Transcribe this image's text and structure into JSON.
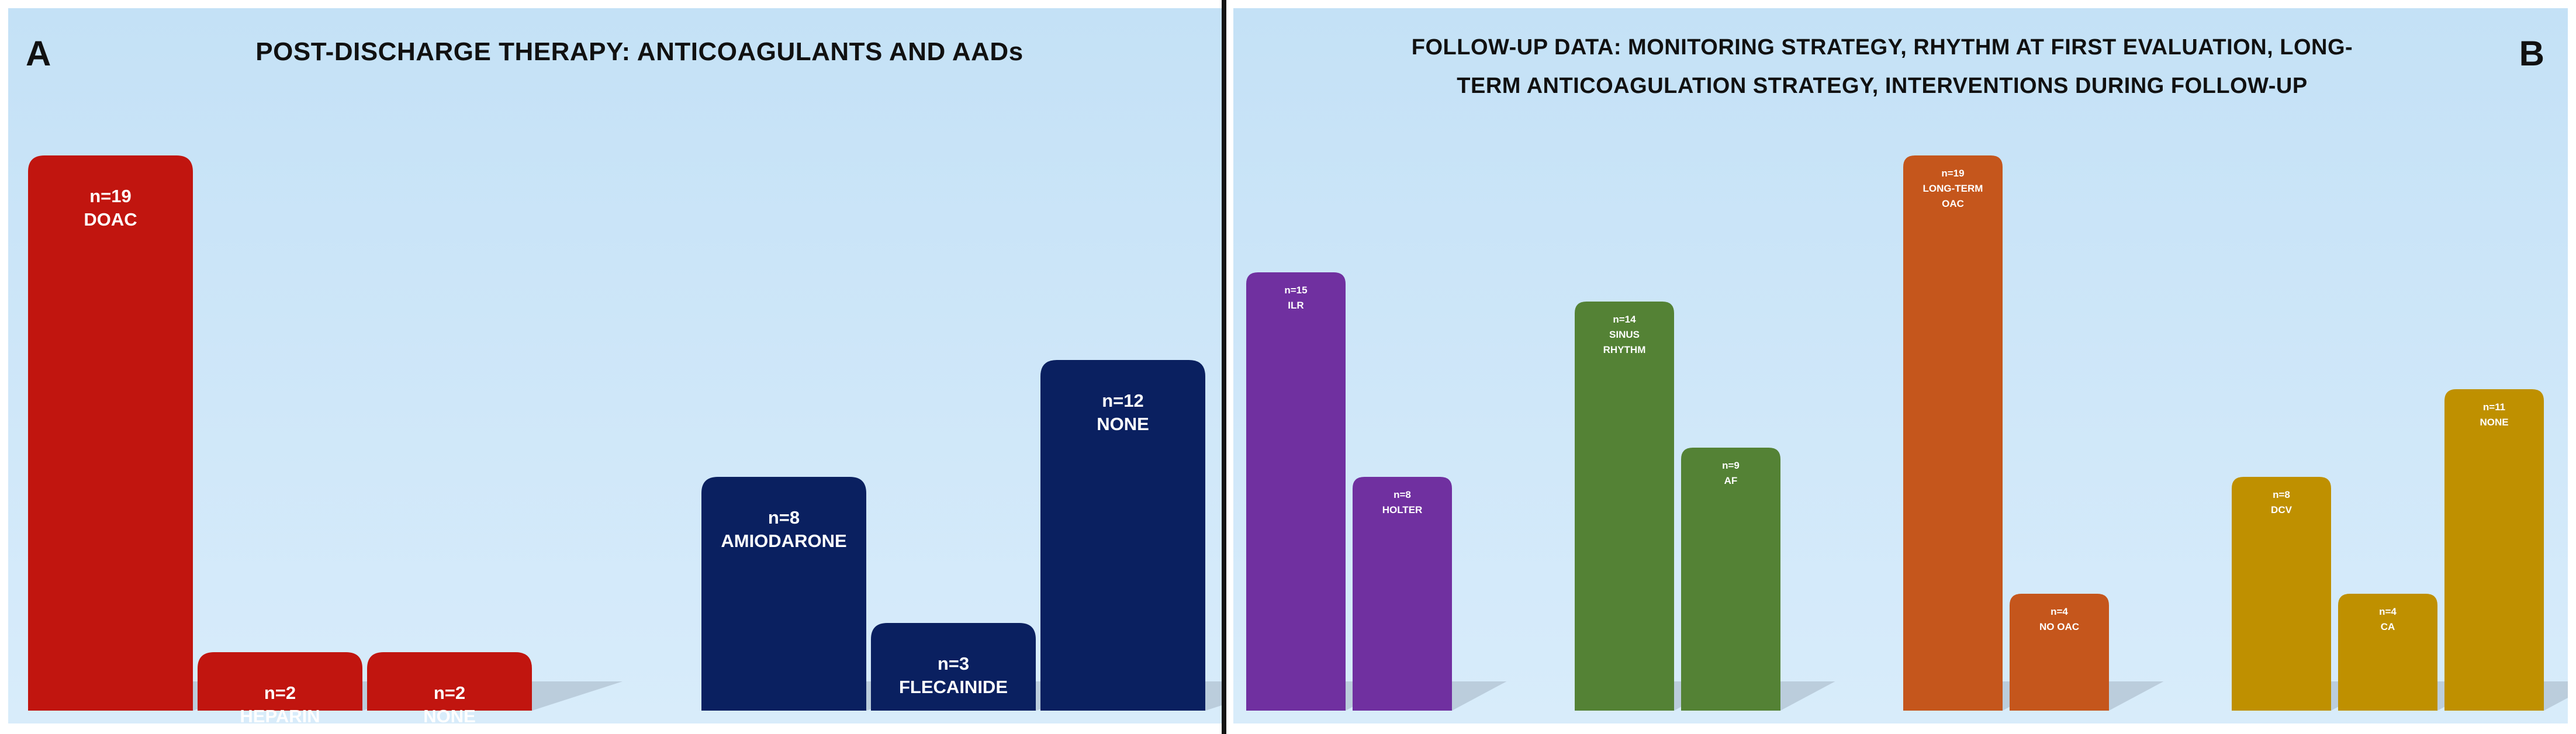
{
  "panels": {
    "a": {
      "letter": "A",
      "title": "POST-DISCHARGE THERAPY: ANTICOAGULANTS AND AADs"
    },
    "b": {
      "letter": "B",
      "title_line1": "FOLLOW-UP DATA: MONITORING STRATEGY, RHYTHM AT FIRST EVALUATION, LONG-",
      "title_line2": "TERM ANTICOAGULATION STRATEGY, INTERVENTIONS DURING FOLLOW-UP"
    }
  },
  "colors": {
    "anticoagulant": "#c1150f",
    "aad": "#0a2060",
    "monitoring": "#7030a0",
    "rhythm": "#548235",
    "long_term_oac": "#c5561c",
    "interventions": "#bf9000",
    "shadow": "#9aa9b8"
  },
  "chart_data": [
    {
      "type": "bar",
      "panel": "A",
      "title": "POST-DISCHARGE THERAPY: ANTICOAGULANTS AND AADs",
      "ylim": [
        0,
        21
      ],
      "grid": false,
      "groups": [
        {
          "color_key": "anticoagulant",
          "bars": [
            {
              "label": "n=19",
              "sublabel": "DOAC",
              "value": 19
            },
            {
              "label": "n=2",
              "sublabel": "HEPARIN",
              "value": 2
            },
            {
              "label": "n=2",
              "sublabel": "NONE",
              "value": 2
            }
          ]
        },
        {
          "color_key": "aad",
          "bars": [
            {
              "label": "n=8",
              "sublabel": "AMIODARONE",
              "value": 8
            },
            {
              "label": "n=3",
              "sublabel": "FLECAINIDE",
              "value": 3
            },
            {
              "label": "n=12",
              "sublabel": "NONE",
              "value": 12
            }
          ]
        }
      ]
    },
    {
      "type": "bar",
      "panel": "B",
      "title": "FOLLOW-UP DATA: MONITORING STRATEGY, RHYTHM AT FIRST EVALUATION, LONG-TERM ANTICOAGULATION STRATEGY, INTERVENTIONS DURING FOLLOW-UP",
      "ylim": [
        0,
        21
      ],
      "grid": false,
      "groups": [
        {
          "color_key": "monitoring",
          "bars": [
            {
              "label": "n=15",
              "sublabel": "ILR",
              "value": 15
            },
            {
              "label": "n=8",
              "sublabel": "HOLTER",
              "value": 8
            }
          ]
        },
        {
          "color_key": "rhythm",
          "bars": [
            {
              "label": "n=14",
              "sublabel": "SINUS RHYTHM",
              "value": 14
            },
            {
              "label": "n=9",
              "sublabel": "AF",
              "value": 9
            }
          ]
        },
        {
          "color_key": "long_term_oac",
          "bars": [
            {
              "label": "n=19",
              "sublabel": "LONG-TERM OAC",
              "value": 19
            },
            {
              "label": "n=4",
              "sublabel": "NO OAC",
              "value": 4
            }
          ]
        },
        {
          "color_key": "interventions",
          "bars": [
            {
              "label": "n=8",
              "sublabel": "DCV",
              "value": 8
            },
            {
              "label": "n=4",
              "sublabel": "CA",
              "value": 4
            },
            {
              "label": "n=11",
              "sublabel": "NONE",
              "value": 11
            }
          ]
        }
      ]
    }
  ]
}
